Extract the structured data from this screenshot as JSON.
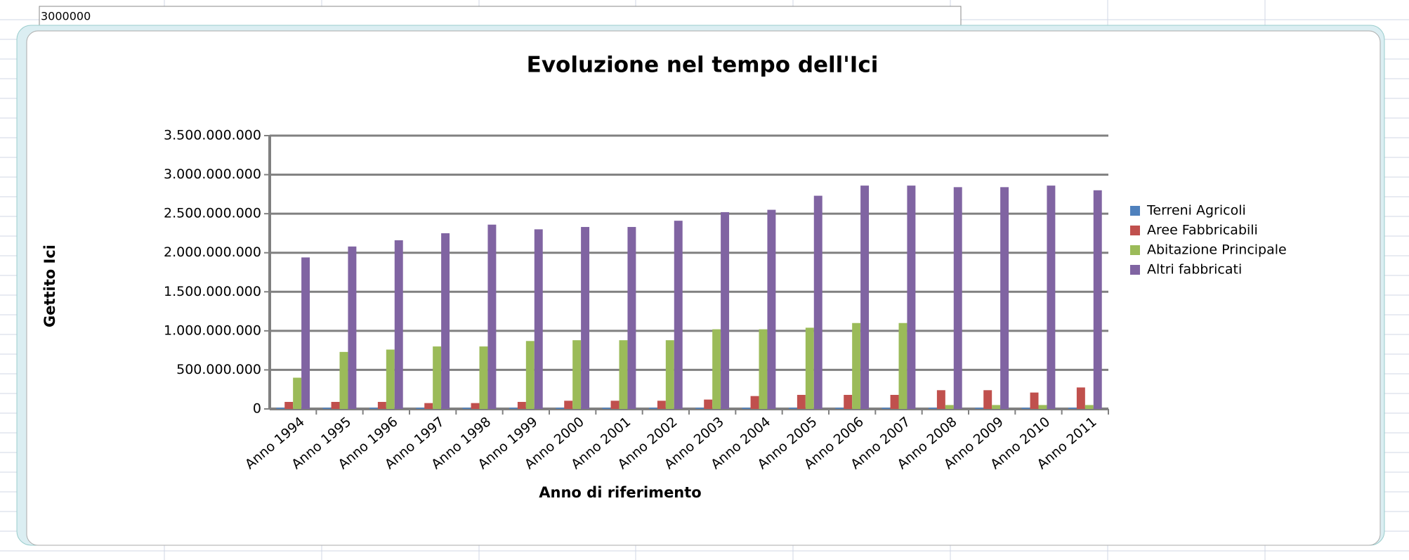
{
  "spreadsheet_cell": "3000000",
  "chart_data": {
    "type": "bar",
    "title": "Evoluzione nel tempo dell'Ici",
    "x_label": "Anno di riferimento",
    "y_label": "Gettito Ici",
    "categories": [
      "Anno 1994",
      "Anno 1995",
      "Anno 1996",
      "Anno 1997",
      "Anno 1998",
      "Anno 1999",
      "Anno 2000",
      "Anno 2001",
      "Anno 2002",
      "Anno 2003",
      "Anno 2004",
      "Anno 2005",
      "Anno 2006",
      "Anno 2007",
      "Anno 2008",
      "Anno 2009",
      "Anno 2010",
      "Anno 2011"
    ],
    "series": [
      {
        "name": "Terreni Agricoli",
        "color": "#4f81bd",
        "values": [
          15000000,
          15000000,
          15000000,
          15000000,
          15000000,
          15000000,
          15000000,
          15000000,
          15000000,
          15000000,
          15000000,
          15000000,
          15000000,
          15000000,
          15000000,
          15000000,
          15000000,
          15000000
        ]
      },
      {
        "name": "Aree Fabbricabili",
        "color": "#c0504d",
        "values": [
          90000000,
          90000000,
          90000000,
          75000000,
          75000000,
          90000000,
          105000000,
          105000000,
          105000000,
          120000000,
          165000000,
          180000000,
          180000000,
          180000000,
          240000000,
          240000000,
          210000000,
          275000000
        ]
      },
      {
        "name": "Abitazione Principale",
        "color": "#9bbb59",
        "values": [
          400000000,
          730000000,
          760000000,
          800000000,
          800000000,
          870000000,
          880000000,
          880000000,
          880000000,
          1020000000,
          1020000000,
          1040000000,
          1100000000,
          1100000000,
          50000000,
          50000000,
          50000000,
          50000000
        ]
      },
      {
        "name": "Altri fabbricati",
        "color": "#8064a2",
        "values": [
          1940000000,
          2080000000,
          2160000000,
          2250000000,
          2360000000,
          2300000000,
          2330000000,
          2330000000,
          2410000000,
          2520000000,
          2550000000,
          2730000000,
          2860000000,
          2860000000,
          2840000000,
          2840000000,
          2860000000,
          2800000000
        ]
      }
    ],
    "ylim": [
      0,
      3500000000
    ],
    "yticks": [
      0,
      {
        "value": 500000000,
        "label": "500.000.000"
      },
      {
        "value": 1000000000,
        "label": "1.000.000.000"
      },
      {
        "value": 1500000000,
        "label": "1.500.000.000"
      },
      {
        "value": 2000000000,
        "label": "2.000.000.000"
      },
      {
        "value": 2500000000,
        "label": "2.500.000.000"
      },
      {
        "value": 3000000000,
        "label": "3.000.000.000"
      },
      {
        "value": 3500000000,
        "label": "3.500.000.000"
      }
    ],
    "grid": true,
    "legend": "right"
  }
}
